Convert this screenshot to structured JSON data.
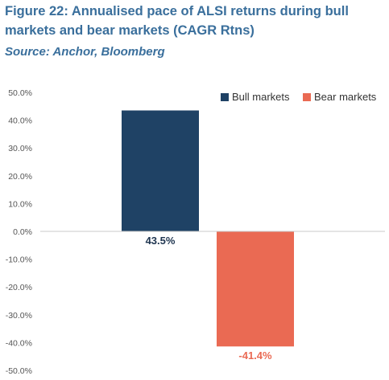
{
  "header": {
    "title": "Figure 22: Annualised pace of ALSI returns during bull markets and bear markets (CAGR Rtns)",
    "source": "Source: Anchor, Bloomberg"
  },
  "chart_data": {
    "type": "bar",
    "categories": [
      "Bull markets",
      "Bear markets"
    ],
    "values": [
      43.5,
      -41.4
    ],
    "value_labels": [
      "43.5%",
      "-41.4%"
    ],
    "colors": [
      "#1f4265",
      "#ea6a53"
    ],
    "label_colors": [
      "#1f3550",
      "#ea6a53"
    ],
    "ylim": [
      -50,
      50
    ],
    "yticks": [
      50,
      40,
      30,
      20,
      10,
      0,
      -10,
      -20,
      -30,
      -40,
      -50
    ],
    "ytick_labels": [
      "50.0%",
      "40.0%",
      "30.0%",
      "20.0%",
      "10.0%",
      "0.0%",
      "-10.0%",
      "-20.0%",
      "-30.0%",
      "-40.0%",
      "-50.0%"
    ],
    "legend": [
      "Bull markets",
      "Bear markets"
    ],
    "legend_position": "top-right",
    "grid": false
  }
}
